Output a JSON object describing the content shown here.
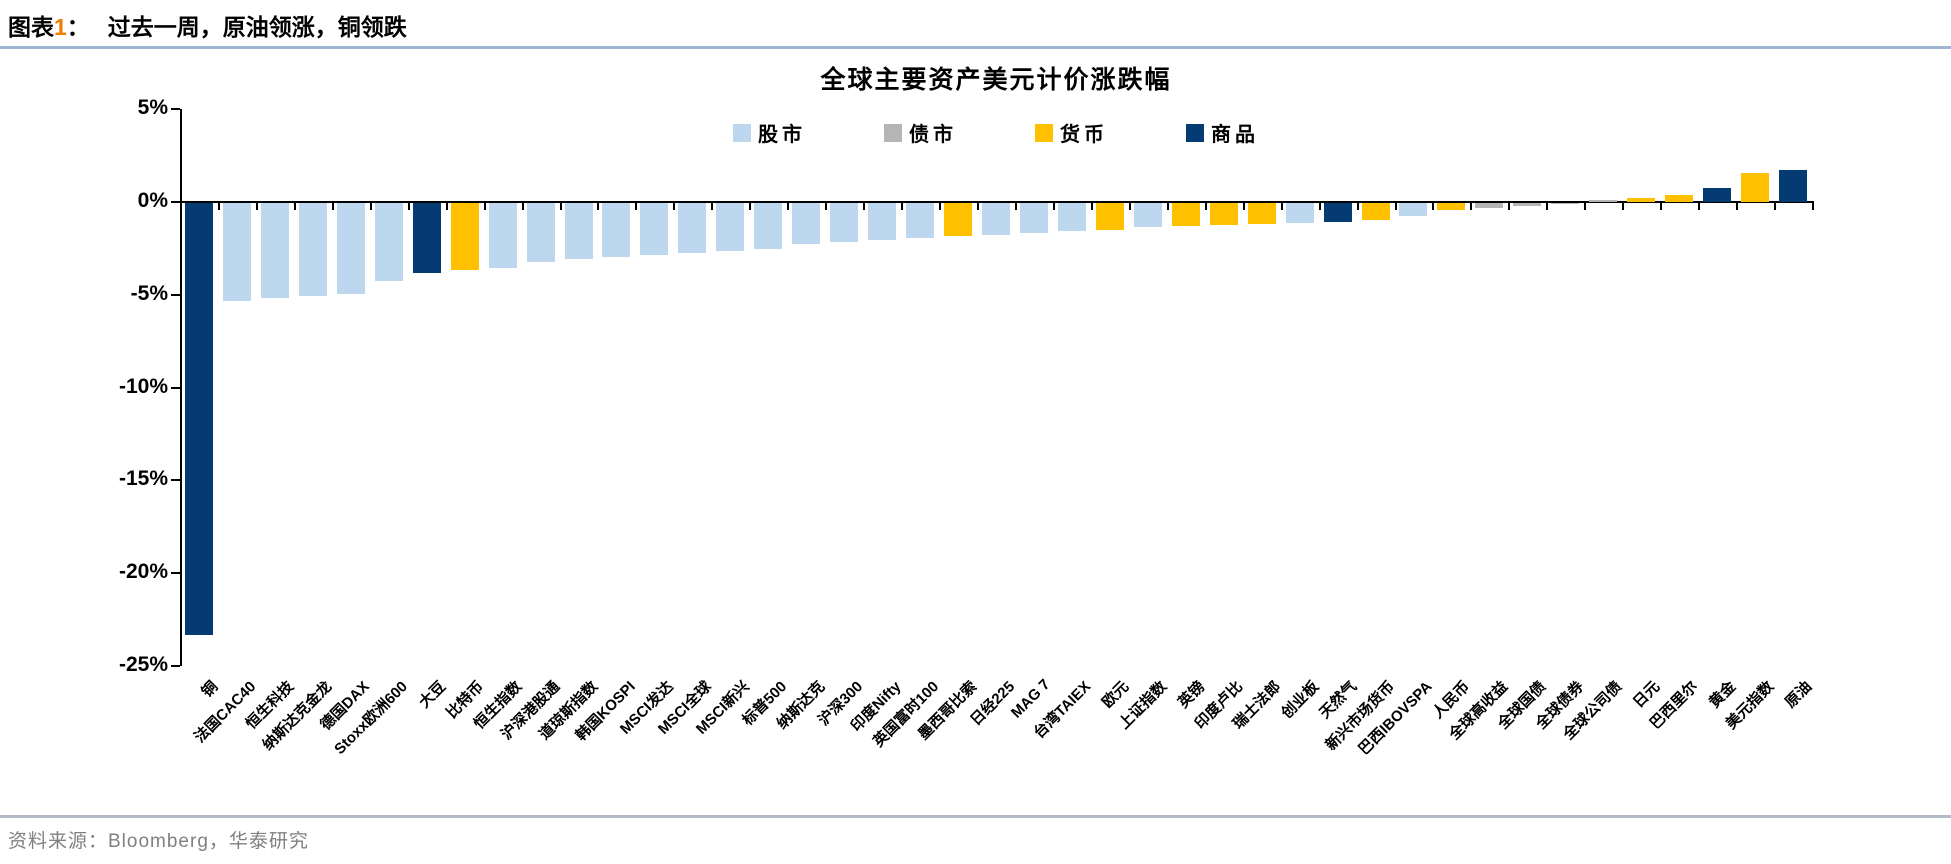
{
  "header": {
    "tag_prefix": "图表",
    "tag_number": "1",
    "colon": "：",
    "title": "过去一周，原油领涨，铜领跌"
  },
  "chart_data": {
    "type": "bar",
    "title": "全球主要资产美元计价涨跌幅",
    "ylim": [
      -25,
      5
    ],
    "yticks": [
      "5%",
      "0%",
      "-5%",
      "-10%",
      "-15%",
      "-20%",
      "-25%"
    ],
    "ytick_values": [
      5,
      0,
      -5,
      -10,
      -15,
      -20,
      -25
    ],
    "grid": false,
    "legend_position": "top-center",
    "legend": [
      {
        "label": "股市",
        "color": "#BDD7EE"
      },
      {
        "label": "债市",
        "color": "#B5B5B5"
      },
      {
        "label": "货币",
        "color": "#FFC000"
      },
      {
        "label": "商品",
        "color": "#043B72"
      }
    ],
    "group_colors": {
      "股市": "#BDD7EE",
      "债市": "#B5B5B5",
      "货币": "#FFC000",
      "商品": "#043B72"
    },
    "bars": [
      {
        "label": "铜",
        "group": "商品",
        "value": -23.3
      },
      {
        "label": "法国CAC40",
        "group": "股市",
        "value": -5.3
      },
      {
        "label": "恒生科技",
        "group": "股市",
        "value": -5.1
      },
      {
        "label": "纳斯达克金龙",
        "group": "股市",
        "value": -5.0
      },
      {
        "label": "德国DAX",
        "group": "股市",
        "value": -4.9
      },
      {
        "label": "Stoxx欧洲600",
        "group": "股市",
        "value": -4.2
      },
      {
        "label": "大豆",
        "group": "商品",
        "value": -3.8
      },
      {
        "label": "比特币",
        "group": "货币",
        "value": -3.6
      },
      {
        "label": "恒生指数",
        "group": "股市",
        "value": -3.5
      },
      {
        "label": "沪深港股通",
        "group": "股市",
        "value": -3.2
      },
      {
        "label": "道琼斯指数",
        "group": "股市",
        "value": -3.0
      },
      {
        "label": "韩国KOSPI",
        "group": "股市",
        "value": -2.9
      },
      {
        "label": "MSCI发达",
        "group": "股市",
        "value": -2.8
      },
      {
        "label": "MSCI全球",
        "group": "股市",
        "value": -2.7
      },
      {
        "label": "MSCI新兴",
        "group": "股市",
        "value": -2.6
      },
      {
        "label": "标普500",
        "group": "股市",
        "value": -2.5
      },
      {
        "label": "纳斯达克",
        "group": "股市",
        "value": -2.2
      },
      {
        "label": "沪深300",
        "group": "股市",
        "value": -2.1
      },
      {
        "label": "印度Nifty",
        "group": "股市",
        "value": -2.0
      },
      {
        "label": "英国富时100",
        "group": "股市",
        "value": -1.9
      },
      {
        "label": "墨西哥比索",
        "group": "货币",
        "value": -1.8
      },
      {
        "label": "日经225",
        "group": "股市",
        "value": -1.75
      },
      {
        "label": "MAG 7",
        "group": "股市",
        "value": -1.6
      },
      {
        "label": "台湾TAIEX",
        "group": "股市",
        "value": -1.5
      },
      {
        "label": "欧元",
        "group": "货币",
        "value": -1.45
      },
      {
        "label": "上证指数",
        "group": "股市",
        "value": -1.3
      },
      {
        "label": "英镑",
        "group": "货币",
        "value": -1.25
      },
      {
        "label": "印度卢比",
        "group": "货币",
        "value": -1.2
      },
      {
        "label": "瑞士法郎",
        "group": "货币",
        "value": -1.15
      },
      {
        "label": "创业板",
        "group": "股市",
        "value": -1.1
      },
      {
        "label": "天然气",
        "group": "商品",
        "value": -1.0
      },
      {
        "label": "新兴市场货币",
        "group": "货币",
        "value": -0.9
      },
      {
        "label": "巴西IBOVSPA",
        "group": "股市",
        "value": -0.7
      },
      {
        "label": "人民币",
        "group": "货币",
        "value": -0.4
      },
      {
        "label": "全球高收益",
        "group": "债市",
        "value": -0.25
      },
      {
        "label": "全球国债",
        "group": "债市",
        "value": -0.15
      },
      {
        "label": "全球债券",
        "group": "债市",
        "value": -0.05
      },
      {
        "label": "全球公司债",
        "group": "债市",
        "value": 0.1
      },
      {
        "label": "日元",
        "group": "货币",
        "value": 0.2
      },
      {
        "label": "巴西里尔",
        "group": "货币",
        "value": 0.4
      },
      {
        "label": "黄金",
        "group": "商品",
        "value": 0.75
      },
      {
        "label": "美元指数",
        "group": "货币",
        "value": 1.55
      },
      {
        "label": "原油",
        "group": "商品",
        "value": 1.7
      }
    ]
  },
  "footer": {
    "source": "资料来源：Bloomberg，华泰研究"
  }
}
